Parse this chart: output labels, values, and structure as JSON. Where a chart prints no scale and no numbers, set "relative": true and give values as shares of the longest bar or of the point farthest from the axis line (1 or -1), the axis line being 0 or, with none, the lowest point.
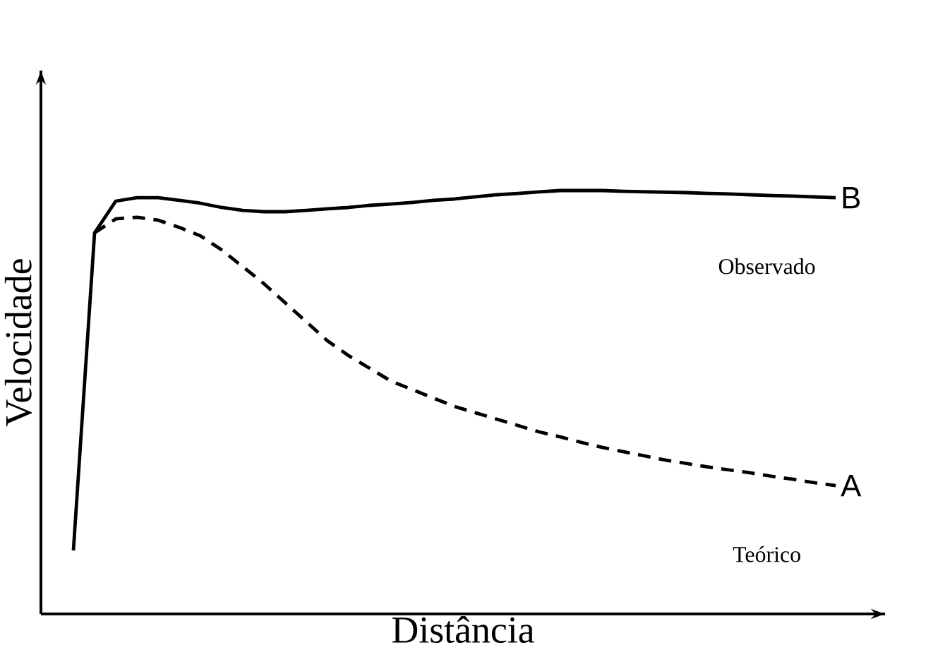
{
  "chart_data": {
    "type": "line",
    "relative": true,
    "xlabel": "Distância",
    "ylabel": "Velocidade",
    "marker": "none",
    "categories": [
      null,
      null,
      null,
      null,
      null,
      null,
      null,
      null,
      null,
      null,
      null,
      null,
      null,
      null,
      null,
      null,
      null,
      null,
      null,
      null,
      null,
      null,
      null,
      null,
      null,
      null,
      null,
      null,
      null,
      null,
      null,
      null,
      null,
      null,
      null,
      null,
      null
    ],
    "series": [
      {
        "name": "B",
        "color": "#000000",
        "line_style": "solid",
        "values": [
          0.15,
          0.9,
          0.975,
          0.983,
          0.983,
          0.977,
          0.97,
          0.96,
          0.953,
          0.95,
          0.95,
          0.953,
          0.957,
          0.96,
          0.965,
          0.968,
          0.972,
          0.977,
          0.98,
          0.985,
          0.99,
          0.993,
          0.997,
          1.0,
          1.0,
          1.0,
          0.998,
          0.997,
          0.996,
          0.995,
          0.993,
          0.992,
          0.99,
          0.988,
          0.987,
          0.985,
          0.983
        ]
      },
      {
        "name": "A",
        "color": "#000000",
        "line_style": "dashed",
        "values": [
          null,
          0.9,
          0.933,
          0.937,
          0.93,
          0.913,
          0.893,
          0.86,
          0.82,
          0.78,
          0.735,
          0.69,
          0.645,
          0.61,
          0.58,
          0.55,
          0.53,
          0.51,
          0.49,
          0.475,
          0.46,
          0.445,
          0.43,
          0.418,
          0.405,
          0.393,
          0.383,
          0.373,
          0.363,
          0.355,
          0.347,
          0.34,
          0.333,
          0.325,
          0.318,
          0.31,
          0.303
        ]
      }
    ],
    "annotations": [
      "Observado",
      "Teórico"
    ]
  }
}
